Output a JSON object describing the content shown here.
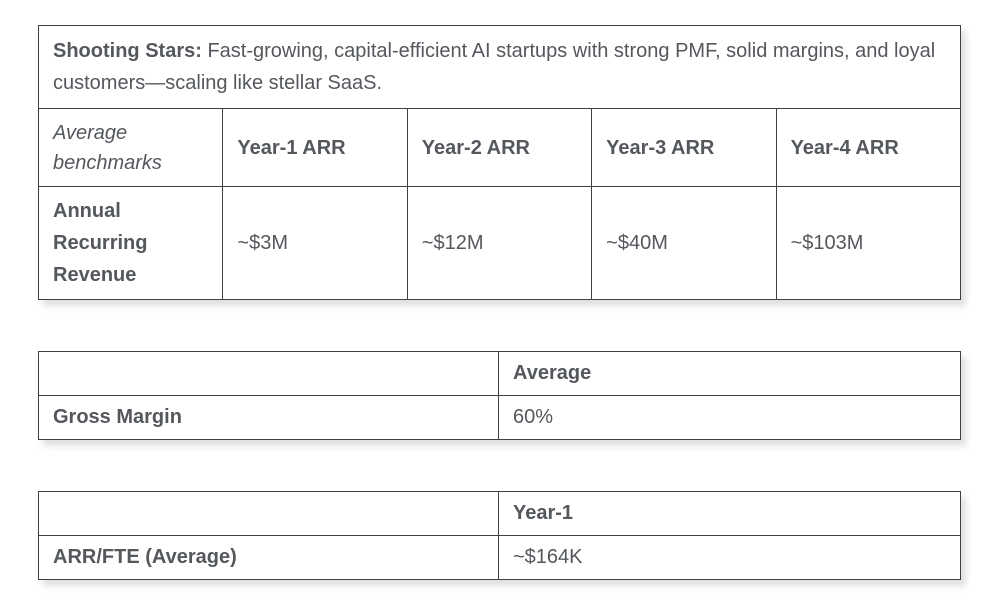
{
  "page": {
    "colors": {
      "text": "#54585d",
      "border": "#3e4144",
      "background": "#ffffff"
    },
    "table1": {
      "caption": {
        "title": "Shooting Stars:",
        "description": "Fast-growing, capital-efficient AI startups with strong PMF, solid margins, and loyal customers—scaling like stellar SaaS."
      },
      "header": {
        "row_label": "Average benchmarks",
        "columns": [
          "Year-1 ARR",
          "Year-2 ARR",
          "Year-3 ARR",
          "Year-4 ARR"
        ]
      },
      "row": {
        "label": "Annual Recurring Revenue",
        "values": [
          "~$3M",
          "~$12M",
          "~$40M",
          "~$103M"
        ]
      }
    },
    "table2": {
      "header": "Average",
      "row": {
        "label": "Gross Margin",
        "value": "60%"
      }
    },
    "table3": {
      "header": "Year-1",
      "row": {
        "label": "ARR/FTE (Average)",
        "value": "~$164K"
      }
    }
  }
}
